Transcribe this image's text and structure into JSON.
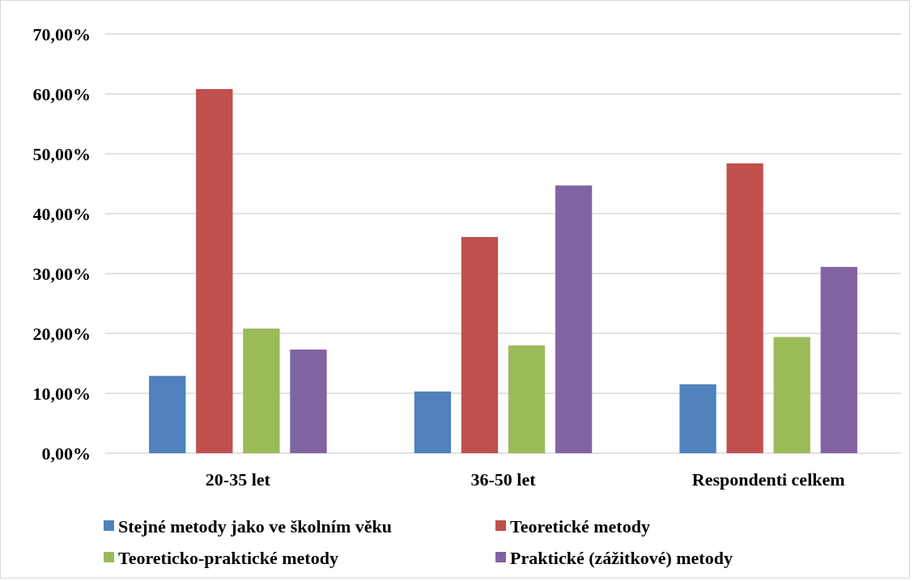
{
  "chart_data": {
    "type": "bar",
    "categories": [
      "20-35 let",
      "36-50 let",
      "Respondenti celkem"
    ],
    "series": [
      {
        "name": "Stejné metody jako ve školním věku",
        "color": "#4f81bd",
        "values": [
          12.9,
          10.3,
          11.5
        ]
      },
      {
        "name": "Teoretické metody",
        "color": "#c0504d",
        "values": [
          60.8,
          36.1,
          48.4
        ]
      },
      {
        "name": "Teoreticko-praktické metody",
        "color": "#9bbb59",
        "values": [
          20.8,
          18.0,
          19.4
        ]
      },
      {
        "name": "Praktické (zážitkové) metody",
        "color": "#8064a2",
        "values": [
          17.3,
          44.7,
          31.1
        ]
      }
    ],
    "ylim": [
      0,
      70
    ],
    "yticks": [
      {
        "value": 0,
        "label": "0,00%"
      },
      {
        "value": 10,
        "label": "10,00%"
      },
      {
        "value": 20,
        "label": "20,00%"
      },
      {
        "value": 30,
        "label": "30,00%"
      },
      {
        "value": 40,
        "label": "40,00%"
      },
      {
        "value": 50,
        "label": "50,00%"
      },
      {
        "value": 60,
        "label": "60,00%"
      },
      {
        "value": 70,
        "label": "70,00%"
      }
    ],
    "grid": "y",
    "legend": "bottom"
  }
}
